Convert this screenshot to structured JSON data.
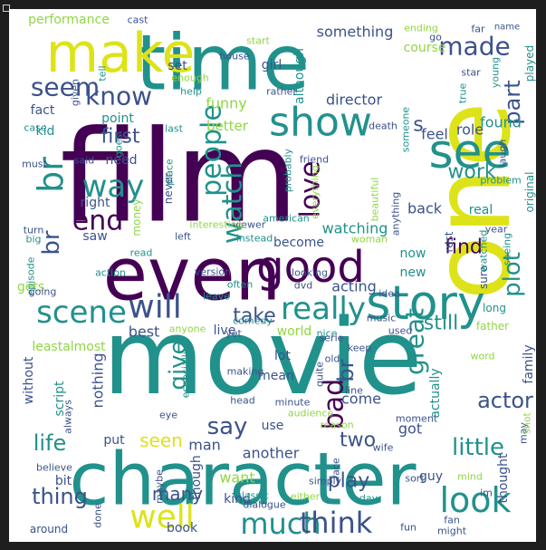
{
  "image_kind": "word cloud",
  "palette": {
    "purple": "#440154",
    "indigo": "#3b528b",
    "teal": "#21918c",
    "green": "#35b779",
    "yellowgreen": "#90d743",
    "yellow": "#dde318"
  },
  "words": [
    {
      "text": "movie",
      "color": "teal"
    },
    {
      "text": "film",
      "color": "purple"
    },
    {
      "text": "one",
      "color": "yellow"
    },
    {
      "text": "character",
      "color": "teal"
    },
    {
      "text": "time",
      "color": "teal"
    },
    {
      "text": "make",
      "color": "yellow"
    },
    {
      "text": "even",
      "color": "purple"
    },
    {
      "text": "story",
      "color": "teal"
    },
    {
      "text": "see",
      "color": "teal"
    },
    {
      "text": "show",
      "color": "teal"
    },
    {
      "text": "good",
      "color": "purple"
    },
    {
      "text": "really",
      "color": "teal"
    },
    {
      "text": "much",
      "color": "teal"
    },
    {
      "text": "think",
      "color": "indigo"
    },
    {
      "text": "well",
      "color": "yellow"
    },
    {
      "text": "look",
      "color": "teal"
    },
    {
      "text": "scene",
      "color": "teal"
    },
    {
      "text": "will",
      "color": "indigo"
    },
    {
      "text": "made",
      "color": "indigo"
    },
    {
      "text": "plot",
      "color": "teal"
    },
    {
      "text": "way",
      "color": "teal"
    },
    {
      "text": "end",
      "color": "purple"
    },
    {
      "text": "know",
      "color": "indigo"
    },
    {
      "text": "seem",
      "color": "indigo"
    },
    {
      "text": "people",
      "color": "teal"
    },
    {
      "text": "watch",
      "color": "teal"
    },
    {
      "text": "love",
      "color": "purple"
    },
    {
      "text": "br",
      "color": "teal"
    },
    {
      "text": "br",
      "color": "indigo"
    },
    {
      "text": "br",
      "color": "indigo"
    },
    {
      "text": "great",
      "color": "teal"
    },
    {
      "text": "bad",
      "color": "purple"
    },
    {
      "text": "little",
      "color": "teal"
    },
    {
      "text": "actor",
      "color": "indigo"
    },
    {
      "text": "say",
      "color": "indigo"
    },
    {
      "text": "life",
      "color": "teal"
    },
    {
      "text": "thing",
      "color": "indigo"
    },
    {
      "text": "many",
      "color": "indigo"
    },
    {
      "text": "seen",
      "color": "yellow"
    },
    {
      "text": "two",
      "color": "indigo"
    },
    {
      "text": "play",
      "color": "indigo"
    },
    {
      "text": "give",
      "color": "teal"
    },
    {
      "text": "take",
      "color": "indigo"
    },
    {
      "text": "work",
      "color": "teal"
    },
    {
      "text": "find",
      "color": "purple"
    },
    {
      "text": "still",
      "color": "teal"
    },
    {
      "text": "part",
      "color": "indigo"
    },
    {
      "text": "first",
      "color": "indigo"
    },
    {
      "text": "s",
      "color": "indigo"
    },
    {
      "text": "performance",
      "color": "yellowgreen"
    },
    {
      "text": "cast",
      "color": "indigo"
    },
    {
      "text": "set",
      "color": "indigo"
    },
    {
      "text": "girl",
      "color": "indigo"
    },
    {
      "text": "something",
      "color": "indigo"
    },
    {
      "text": "ending",
      "color": "yellowgreen"
    },
    {
      "text": "far",
      "color": "indigo"
    },
    {
      "text": "name",
      "color": "indigo"
    },
    {
      "text": "director",
      "color": "indigo"
    },
    {
      "text": "funny",
      "color": "yellowgreen"
    },
    {
      "text": "better",
      "color": "yellowgreen"
    },
    {
      "text": "fact",
      "color": "indigo"
    },
    {
      "text": "kid",
      "color": "teal"
    },
    {
      "text": "point",
      "color": "teal"
    },
    {
      "text": "feel",
      "color": "indigo"
    },
    {
      "text": "role",
      "color": "indigo"
    },
    {
      "text": "found",
      "color": "teal"
    },
    {
      "text": "need",
      "color": "indigo"
    },
    {
      "text": "right",
      "color": "indigo"
    },
    {
      "text": "saw",
      "color": "indigo"
    },
    {
      "text": "back",
      "color": "indigo"
    },
    {
      "text": "real",
      "color": "teal"
    },
    {
      "text": "watching",
      "color": "teal"
    },
    {
      "text": "acting",
      "color": "indigo"
    },
    {
      "text": "now",
      "color": "teal"
    },
    {
      "text": "new",
      "color": "teal"
    },
    {
      "text": "become",
      "color": "indigo"
    },
    {
      "text": "best",
      "color": "indigo"
    },
    {
      "text": "live",
      "color": "indigo"
    },
    {
      "text": "world",
      "color": "yellowgreen"
    },
    {
      "text": "lot",
      "color": "indigo"
    },
    {
      "text": "come",
      "color": "indigo"
    },
    {
      "text": "actually",
      "color": "teal"
    },
    {
      "text": "got",
      "color": "indigo"
    },
    {
      "text": "man",
      "color": "indigo"
    },
    {
      "text": "another",
      "color": "indigo"
    },
    {
      "text": "want",
      "color": "yellowgreen"
    },
    {
      "text": "kind",
      "color": "indigo"
    },
    {
      "text": "though",
      "color": "indigo"
    },
    {
      "text": "guy",
      "color": "indigo"
    },
    {
      "text": "thought",
      "color": "indigo"
    },
    {
      "text": "bit",
      "color": "indigo"
    },
    {
      "text": "put",
      "color": "indigo"
    },
    {
      "text": "book",
      "color": "indigo"
    },
    {
      "text": "around",
      "color": "indigo"
    },
    {
      "text": "nothing",
      "color": "indigo"
    },
    {
      "text": "script",
      "color": "teal"
    },
    {
      "text": "without",
      "color": "indigo"
    },
    {
      "text": "leastalmost",
      "color": "yellowgreen"
    },
    {
      "text": "gets",
      "color": "yellowgreen"
    },
    {
      "text": "episode",
      "color": "teal"
    },
    {
      "text": "action",
      "color": "teal"
    },
    {
      "text": "version",
      "color": "indigo"
    },
    {
      "text": "looking",
      "color": "indigo"
    },
    {
      "text": "family",
      "color": "indigo"
    },
    {
      "text": "father",
      "color": "yellowgreen"
    },
    {
      "text": "long",
      "color": "teal"
    },
    {
      "text": "sure",
      "color": "indigo"
    },
    {
      "text": "rest",
      "color": "indigo"
    },
    {
      "text": "year",
      "color": "indigo"
    },
    {
      "text": "original",
      "color": "teal"
    },
    {
      "text": "played",
      "color": "teal"
    },
    {
      "text": "young",
      "color": "teal"
    },
    {
      "text": "star",
      "color": "indigo"
    },
    {
      "text": "course",
      "color": "yellowgreen"
    },
    {
      "text": "go",
      "color": "indigo"
    },
    {
      "text": "start",
      "color": "yellowgreen"
    },
    {
      "text": "house",
      "color": "indigo"
    },
    {
      "text": "although",
      "color": "teal"
    },
    {
      "text": "rather",
      "color": "indigo"
    },
    {
      "text": "true",
      "color": "teal"
    },
    {
      "text": "enough",
      "color": "yellowgreen"
    },
    {
      "text": "help",
      "color": "teal"
    },
    {
      "text": "last",
      "color": "teal"
    },
    {
      "text": "friend",
      "color": "indigo"
    },
    {
      "text": "death",
      "color": "indigo"
    },
    {
      "text": "someone",
      "color": "teal"
    },
    {
      "text": "laugh",
      "color": "indigo"
    },
    {
      "text": "problem",
      "color": "teal"
    },
    {
      "text": "watched",
      "color": "teal"
    },
    {
      "text": "seeing",
      "color": "teal"
    },
    {
      "text": "beautiful",
      "color": "yellowgreen"
    },
    {
      "text": "anything",
      "color": "indigo"
    },
    {
      "text": "probably",
      "color": "teal"
    },
    {
      "text": "everything",
      "color": "yellowgreen"
    },
    {
      "text": "american",
      "color": "teal"
    },
    {
      "text": "viewer",
      "color": "indigo"
    },
    {
      "text": "instead",
      "color": "teal"
    },
    {
      "text": "left",
      "color": "indigo"
    },
    {
      "text": "interesting",
      "color": "yellowgreen"
    },
    {
      "text": "read",
      "color": "teal"
    },
    {
      "text": "big",
      "color": "teal"
    },
    {
      "text": "turn",
      "color": "indigo"
    },
    {
      "text": "must",
      "color": "indigo"
    },
    {
      "text": "said",
      "color": "indigo"
    },
    {
      "text": "given",
      "color": "indigo"
    },
    {
      "text": "goes",
      "color": "teal"
    },
    {
      "text": "case",
      "color": "teal"
    },
    {
      "text": "tell",
      "color": "teal"
    },
    {
      "text": "place",
      "color": "teal"
    },
    {
      "text": "money",
      "color": "yellowgreen"
    },
    {
      "text": "never",
      "color": "indigo"
    },
    {
      "text": "going",
      "color": "indigo"
    },
    {
      "text": "leave",
      "color": "teal"
    },
    {
      "text": "often",
      "color": "teal"
    },
    {
      "text": "dvd",
      "color": "indigo"
    },
    {
      "text": "idea",
      "color": "indigo"
    },
    {
      "text": "woman",
      "color": "yellowgreen"
    },
    {
      "text": "anyone",
      "color": "yellowgreen"
    },
    {
      "text": "comedy",
      "color": "teal"
    },
    {
      "text": "yet",
      "color": "indigo"
    },
    {
      "text": "nice",
      "color": "teal"
    },
    {
      "text": "music",
      "color": "indigo"
    },
    {
      "text": "used",
      "color": "indigo"
    },
    {
      "text": "mean",
      "color": "indigo"
    },
    {
      "text": "serie",
      "color": "indigo"
    },
    {
      "text": "keep",
      "color": "indigo"
    },
    {
      "text": "old",
      "color": "indigo"
    },
    {
      "text": "word",
      "color": "yellowgreen"
    },
    {
      "text": "quite",
      "color": "indigo"
    },
    {
      "text": "line",
      "color": "indigo"
    },
    {
      "text": "making",
      "color": "indigo"
    },
    {
      "text": "always",
      "color": "indigo"
    },
    {
      "text": "especially",
      "color": "teal"
    },
    {
      "text": "head",
      "color": "indigo"
    },
    {
      "text": "moment",
      "color": "indigo"
    },
    {
      "text": "minute",
      "color": "indigo"
    },
    {
      "text": "use",
      "color": "indigo"
    },
    {
      "text": "may",
      "color": "indigo"
    },
    {
      "text": "shot",
      "color": "yellowgreen"
    },
    {
      "text": "eye",
      "color": "indigo"
    },
    {
      "text": "audience",
      "color": "yellowgreen"
    },
    {
      "text": "reason",
      "color": "yellowgreen"
    },
    {
      "text": "wife",
      "color": "indigo"
    },
    {
      "text": "face",
      "color": "indigo"
    },
    {
      "text": "simply",
      "color": "indigo"
    },
    {
      "text": "mind",
      "color": "yellowgreen"
    },
    {
      "text": "believe",
      "color": "indigo"
    },
    {
      "text": "maybe",
      "color": "indigo"
    },
    {
      "text": "classic",
      "color": "teal"
    },
    {
      "text": "dialogue",
      "color": "indigo"
    },
    {
      "text": "either",
      "color": "yellowgreen"
    },
    {
      "text": "day",
      "color": "teal"
    },
    {
      "text": "sort",
      "color": "indigo"
    },
    {
      "text": "im",
      "color": "indigo"
    },
    {
      "text": "fun",
      "color": "indigo"
    },
    {
      "text": "fan",
      "color": "indigo"
    },
    {
      "text": "might",
      "color": "indigo"
    },
    {
      "text": "done",
      "color": "indigo"
    },
    {
      "text": "everyone",
      "color": "yellowgreen"
    }
  ]
}
